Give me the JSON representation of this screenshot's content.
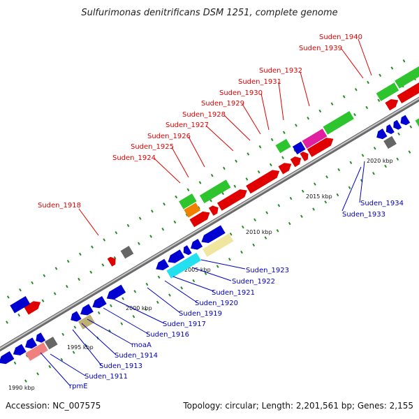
{
  "title": "Sulfurimonas denitrificans DSM 1251, complete genome",
  "footer": {
    "accession": "Accession: NC_007575",
    "summary": "Topology: circular; Length: 2,201,561 bp; Genes: 2,155"
  },
  "ticks": [
    "1990 kbp",
    "1995 kbp",
    "2000 kbp",
    "2005 kbp",
    "2010 kbp",
    "2015 kbp",
    "2020 kbp"
  ],
  "labels_top": [
    "Suden_1940",
    "Suden_1939",
    "Suden_1932",
    "Suden_1931",
    "Suden_1930",
    "Suden_1929",
    "Suden_1928",
    "Suden_1927",
    "Suden_1926",
    "Suden_1925",
    "Suden_1924",
    "Suden_1918"
  ],
  "labels_bottom": [
    "Suden_1934",
    "Suden_1933",
    "Suden_1923",
    "Suden_1922",
    "Suden_1921",
    "Suden_1920",
    "Suden_1919",
    "Suden_1917",
    "Suden_1916",
    "moaA",
    "Suden_1914",
    "Suden_1913",
    "Suden_1911",
    "rpmE"
  ],
  "colors": {
    "forward_cds": "#e00000",
    "reverse_cds": "#0000d0",
    "rna_gene": "#2ec42e",
    "pseudo": "#666666",
    "cyan": "#22e0f0",
    "khaki": "#f0e6a0",
    "magenta": "#e020a0",
    "orange": "#f08000",
    "pink": "#f08080",
    "olive": "#c0b070",
    "backbone": "#888888"
  }
}
